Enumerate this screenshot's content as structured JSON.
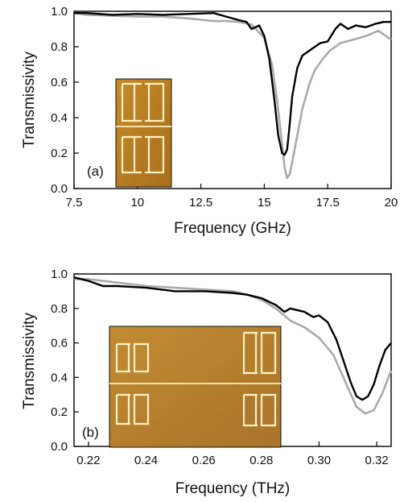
{
  "chart_data": [
    {
      "type": "line",
      "panel_label": "(a)",
      "xlabel": "Frequency (GHz)",
      "ylabel": "Transmissivity",
      "xlim": [
        7.5,
        20
      ],
      "ylim": [
        0.0,
        1.0
      ],
      "xticks": [
        7.5,
        10,
        12.5,
        15,
        17.5,
        20
      ],
      "xtick_labels": [
        "7.5",
        "10",
        "12.5",
        "15",
        "17.5",
        "20"
      ],
      "yticks": [
        0.0,
        0.2,
        0.4,
        0.6,
        0.8,
        1.0
      ],
      "ytick_labels": [
        "0.0",
        "0.2",
        "0.4",
        "0.6",
        "0.8",
        "1.0"
      ],
      "grid": false,
      "inset": "photo of two double-gap split-ring resonator cells",
      "series": [
        {
          "color": "#000000",
          "x": [
            7.5,
            8.0,
            9.0,
            10.0,
            11.0,
            12.0,
            13.0,
            13.5,
            14.0,
            14.3,
            14.5,
            14.8,
            15.0,
            15.2,
            15.4,
            15.55,
            15.7,
            15.8,
            15.9,
            16.0,
            16.1,
            16.3,
            16.5,
            16.8,
            17.0,
            17.2,
            17.5,
            17.8,
            18.0,
            18.3,
            18.6,
            19.0,
            19.4,
            19.7,
            20.0
          ],
          "y": [
            0.99,
            0.99,
            0.98,
            0.985,
            0.98,
            0.985,
            0.99,
            0.97,
            0.95,
            0.94,
            0.9,
            0.92,
            0.86,
            0.73,
            0.5,
            0.3,
            0.2,
            0.19,
            0.22,
            0.36,
            0.52,
            0.68,
            0.75,
            0.78,
            0.8,
            0.82,
            0.83,
            0.9,
            0.93,
            0.9,
            0.92,
            0.91,
            0.93,
            0.94,
            0.94
          ]
        },
        {
          "color": "#aaaaaa",
          "x": [
            7.5,
            8.0,
            9.0,
            10.0,
            11.0,
            12.0,
            13.0,
            13.5,
            14.0,
            14.5,
            15.0,
            15.3,
            15.5,
            15.7,
            15.8,
            15.9,
            16.0,
            16.1,
            16.3,
            16.5,
            16.8,
            17.0,
            17.3,
            17.6,
            18.0,
            18.5,
            19.0,
            19.5,
            20.0
          ],
          "y": [
            0.99,
            0.98,
            0.975,
            0.97,
            0.97,
            0.96,
            0.945,
            0.945,
            0.94,
            0.925,
            0.85,
            0.7,
            0.5,
            0.25,
            0.12,
            0.06,
            0.08,
            0.15,
            0.3,
            0.45,
            0.6,
            0.67,
            0.73,
            0.78,
            0.82,
            0.84,
            0.86,
            0.89,
            0.84
          ]
        }
      ]
    },
    {
      "type": "line",
      "panel_label": "(b)",
      "xlabel": "Frequency (THz)",
      "ylabel": "Transmissivity",
      "xlim": [
        0.215,
        0.325
      ],
      "ylim": [
        0.0,
        1.0
      ],
      "xticks": [
        0.22,
        0.24,
        0.26,
        0.28,
        0.3,
        0.32
      ],
      "xtick_labels": [
        "0.22",
        "0.24",
        "0.26",
        "0.28",
        "0.30",
        "0.32"
      ],
      "yticks": [
        0.0,
        0.2,
        0.4,
        0.6,
        0.8,
        1.0
      ],
      "ytick_labels": [
        "0.0",
        "0.2",
        "0.4",
        "0.6",
        "0.8",
        "1.0"
      ],
      "grid": false,
      "inset": "photo of array of double-gap split-ring resonator cells",
      "series": [
        {
          "color": "#000000",
          "x": [
            0.215,
            0.22,
            0.225,
            0.23,
            0.24,
            0.25,
            0.26,
            0.27,
            0.275,
            0.28,
            0.285,
            0.288,
            0.29,
            0.295,
            0.298,
            0.3,
            0.303,
            0.306,
            0.309,
            0.311,
            0.313,
            0.315,
            0.317,
            0.319,
            0.321,
            0.323,
            0.325
          ],
          "y": [
            0.98,
            0.96,
            0.93,
            0.93,
            0.92,
            0.9,
            0.9,
            0.89,
            0.88,
            0.86,
            0.82,
            0.78,
            0.8,
            0.78,
            0.75,
            0.76,
            0.72,
            0.62,
            0.47,
            0.37,
            0.29,
            0.27,
            0.29,
            0.36,
            0.47,
            0.56,
            0.6
          ]
        },
        {
          "color": "#aaaaaa",
          "x": [
            0.215,
            0.22,
            0.23,
            0.24,
            0.25,
            0.26,
            0.27,
            0.275,
            0.28,
            0.285,
            0.29,
            0.295,
            0.3,
            0.305,
            0.31,
            0.313,
            0.316,
            0.319,
            0.322,
            0.325
          ],
          "y": [
            0.97,
            0.97,
            0.95,
            0.93,
            0.92,
            0.91,
            0.9,
            0.88,
            0.85,
            0.8,
            0.73,
            0.69,
            0.63,
            0.53,
            0.34,
            0.23,
            0.19,
            0.21,
            0.31,
            0.44
          ]
        }
      ]
    }
  ]
}
